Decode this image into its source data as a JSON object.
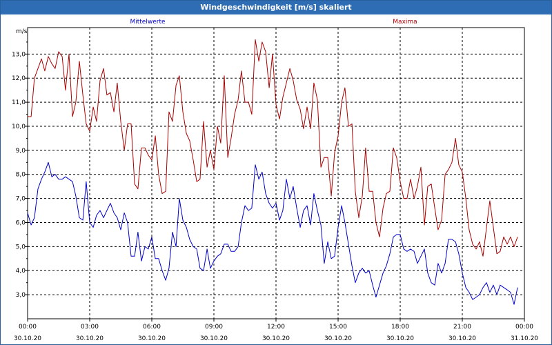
{
  "window": {
    "title": "Windgeschwindigkeit [m/s] skaliert"
  },
  "colors": {
    "titlebar": "#2e6db4",
    "mean": "#0000cc",
    "max": "#aa0000",
    "grid": "#000000"
  },
  "chart_data": {
    "type": "line",
    "title": "Windgeschwindigkeit [m/s] skaliert",
    "ylabel": "m/s",
    "ylim": [
      2.0,
      14.1
    ],
    "yticks": [
      "3,0",
      "4,0",
      "5,0",
      "6,0",
      "7,0",
      "8,0",
      "9,0",
      "10,0",
      "11,0",
      "12,0",
      "13,0"
    ],
    "ytick_values": [
      3,
      4,
      5,
      6,
      7,
      8,
      9,
      10,
      11,
      12,
      13
    ],
    "xlim_hours": [
      0,
      24
    ],
    "xticks": [
      {
        "time": "00:00",
        "date": "30.10.20",
        "h": 0
      },
      {
        "time": "03:00",
        "date": "30.10.20",
        "h": 3
      },
      {
        "time": "06:00",
        "date": "30.10.20",
        "h": 6
      },
      {
        "time": "09:00",
        "date": "30.10.20",
        "h": 9
      },
      {
        "time": "12:00",
        "date": "30.10.20",
        "h": 12
      },
      {
        "time": "15:00",
        "date": "30.10.20",
        "h": 15
      },
      {
        "time": "18:00",
        "date": "30.10.20",
        "h": 18
      },
      {
        "time": "21:00",
        "date": "30.10.20",
        "h": 21
      },
      {
        "time": "00:00",
        "date": "31.10.20",
        "h": 24
      }
    ],
    "grid": true,
    "series": [
      {
        "name": "Mittelwerte",
        "color": "#0000cc",
        "points": [
          [
            0.0,
            6.4
          ],
          [
            0.17,
            5.9
          ],
          [
            0.33,
            6.2
          ],
          [
            0.5,
            7.4
          ],
          [
            0.67,
            7.8
          ],
          [
            0.83,
            8.1
          ],
          [
            1.0,
            8.5
          ],
          [
            1.17,
            7.9
          ],
          [
            1.33,
            8.0
          ],
          [
            1.5,
            7.8
          ],
          [
            1.67,
            7.8
          ],
          [
            1.83,
            7.9
          ],
          [
            2.0,
            7.8
          ],
          [
            2.17,
            7.7
          ],
          [
            2.33,
            7.1
          ],
          [
            2.5,
            6.2
          ],
          [
            2.67,
            6.1
          ],
          [
            2.83,
            7.7
          ],
          [
            3.0,
            6.0
          ],
          [
            3.17,
            5.8
          ],
          [
            3.33,
            6.3
          ],
          [
            3.5,
            6.5
          ],
          [
            3.67,
            6.2
          ],
          [
            3.83,
            6.5
          ],
          [
            4.0,
            6.8
          ],
          [
            4.17,
            6.4
          ],
          [
            4.33,
            6.2
          ],
          [
            4.5,
            5.7
          ],
          [
            4.67,
            6.4
          ],
          [
            4.83,
            6.0
          ],
          [
            5.0,
            4.6
          ],
          [
            5.17,
            4.6
          ],
          [
            5.33,
            5.6
          ],
          [
            5.5,
            4.4
          ],
          [
            5.67,
            5.0
          ],
          [
            5.83,
            4.9
          ],
          [
            6.0,
            5.4
          ],
          [
            6.17,
            4.5
          ],
          [
            6.33,
            4.5
          ],
          [
            6.5,
            4.0
          ],
          [
            6.67,
            3.6
          ],
          [
            6.83,
            4.1
          ],
          [
            7.0,
            5.6
          ],
          [
            7.17,
            5.0
          ],
          [
            7.33,
            7.0
          ],
          [
            7.5,
            6.1
          ],
          [
            7.67,
            5.8
          ],
          [
            7.83,
            5.3
          ],
          [
            8.0,
            5.0
          ],
          [
            8.17,
            4.9
          ],
          [
            8.33,
            4.1
          ],
          [
            8.5,
            4.0
          ],
          [
            8.67,
            4.9
          ],
          [
            8.83,
            4.1
          ],
          [
            9.0,
            4.4
          ],
          [
            9.17,
            4.6
          ],
          [
            9.33,
            4.7
          ],
          [
            9.5,
            5.1
          ],
          [
            9.67,
            5.1
          ],
          [
            9.83,
            4.8
          ],
          [
            10.0,
            4.8
          ],
          [
            10.17,
            5.0
          ],
          [
            10.33,
            6.0
          ],
          [
            10.5,
            6.7
          ],
          [
            10.67,
            6.5
          ],
          [
            10.83,
            6.6
          ],
          [
            11.0,
            8.4
          ],
          [
            11.17,
            7.8
          ],
          [
            11.33,
            8.1
          ],
          [
            11.5,
            7.2
          ],
          [
            11.67,
            6.8
          ],
          [
            11.83,
            6.6
          ],
          [
            12.0,
            6.8
          ],
          [
            12.17,
            6.1
          ],
          [
            12.33,
            6.5
          ],
          [
            12.5,
            7.8
          ],
          [
            12.67,
            7.0
          ],
          [
            12.83,
            7.5
          ],
          [
            13.0,
            6.6
          ],
          [
            13.17,
            5.8
          ],
          [
            13.33,
            6.5
          ],
          [
            13.5,
            6.7
          ],
          [
            13.67,
            5.9
          ],
          [
            13.83,
            7.2
          ],
          [
            14.0,
            6.5
          ],
          [
            14.17,
            5.9
          ],
          [
            14.33,
            4.3
          ],
          [
            14.5,
            5.2
          ],
          [
            14.67,
            4.5
          ],
          [
            14.83,
            4.6
          ],
          [
            15.0,
            5.8
          ],
          [
            15.17,
            6.7
          ],
          [
            15.33,
            6.0
          ],
          [
            15.5,
            5.1
          ],
          [
            15.67,
            4.2
          ],
          [
            15.83,
            3.5
          ],
          [
            16.0,
            3.9
          ],
          [
            16.17,
            4.1
          ],
          [
            16.33,
            3.9
          ],
          [
            16.5,
            4.0
          ],
          [
            16.67,
            3.4
          ],
          [
            16.83,
            2.9
          ],
          [
            17.0,
            3.4
          ],
          [
            17.17,
            3.9
          ],
          [
            17.33,
            4.2
          ],
          [
            17.5,
            4.7
          ],
          [
            17.67,
            5.4
          ],
          [
            17.83,
            5.5
          ],
          [
            18.0,
            5.5
          ],
          [
            18.17,
            4.9
          ],
          [
            18.33,
            4.8
          ],
          [
            18.5,
            4.9
          ],
          [
            18.67,
            4.8
          ],
          [
            18.83,
            4.3
          ],
          [
            19.0,
            4.6
          ],
          [
            19.17,
            4.9
          ],
          [
            19.33,
            3.9
          ],
          [
            19.5,
            3.5
          ],
          [
            19.67,
            3.4
          ],
          [
            19.83,
            4.3
          ],
          [
            20.0,
            3.9
          ],
          [
            20.17,
            4.3
          ],
          [
            20.33,
            5.3
          ],
          [
            20.5,
            5.3
          ],
          [
            20.67,
            5.2
          ],
          [
            20.83,
            4.7
          ],
          [
            21.0,
            3.9
          ],
          [
            21.17,
            3.3
          ],
          [
            21.33,
            3.1
          ],
          [
            21.5,
            2.8
          ],
          [
            21.67,
            2.9
          ],
          [
            21.83,
            3.0
          ],
          [
            22.0,
            3.3
          ],
          [
            22.17,
            3.5
          ],
          [
            22.33,
            3.1
          ],
          [
            22.5,
            3.4
          ],
          [
            22.67,
            3.0
          ],
          [
            22.83,
            3.4
          ],
          [
            23.0,
            3.3
          ],
          [
            23.17,
            3.2
          ],
          [
            23.33,
            3.1
          ],
          [
            23.5,
            2.6
          ],
          [
            23.67,
            3.3
          ]
        ]
      },
      {
        "name": "Maxima",
        "color": "#aa0000",
        "points": [
          [
            0.0,
            10.4
          ],
          [
            0.17,
            10.4
          ],
          [
            0.33,
            12.0
          ],
          [
            0.5,
            12.4
          ],
          [
            0.67,
            12.8
          ],
          [
            0.83,
            12.3
          ],
          [
            1.0,
            12.9
          ],
          [
            1.17,
            12.6
          ],
          [
            1.33,
            12.4
          ],
          [
            1.5,
            13.1
          ],
          [
            1.67,
            12.9
          ],
          [
            1.83,
            11.5
          ],
          [
            2.0,
            13.0
          ],
          [
            2.17,
            10.4
          ],
          [
            2.33,
            11.0
          ],
          [
            2.5,
            12.7
          ],
          [
            2.67,
            11.3
          ],
          [
            2.83,
            10.1
          ],
          [
            3.0,
            9.8
          ],
          [
            3.17,
            10.8
          ],
          [
            3.33,
            10.2
          ],
          [
            3.5,
            11.9
          ],
          [
            3.67,
            12.4
          ],
          [
            3.83,
            11.3
          ],
          [
            4.0,
            11.4
          ],
          [
            4.17,
            10.6
          ],
          [
            4.33,
            11.8
          ],
          [
            4.5,
            10.2
          ],
          [
            4.67,
            9.0
          ],
          [
            4.83,
            10.1
          ],
          [
            5.0,
            10.1
          ],
          [
            5.17,
            7.6
          ],
          [
            5.33,
            7.4
          ],
          [
            5.5,
            9.1
          ],
          [
            5.67,
            9.1
          ],
          [
            5.83,
            8.8
          ],
          [
            6.0,
            8.6
          ],
          [
            6.17,
            9.6
          ],
          [
            6.33,
            8.0
          ],
          [
            6.5,
            7.2
          ],
          [
            6.67,
            7.3
          ],
          [
            6.83,
            10.6
          ],
          [
            7.0,
            10.2
          ],
          [
            7.17,
            11.7
          ],
          [
            7.33,
            12.1
          ],
          [
            7.5,
            10.6
          ],
          [
            7.67,
            9.7
          ],
          [
            7.83,
            9.4
          ],
          [
            8.0,
            8.6
          ],
          [
            8.17,
            7.7
          ],
          [
            8.33,
            7.8
          ],
          [
            8.5,
            10.2
          ],
          [
            8.67,
            8.3
          ],
          [
            8.83,
            9.0
          ],
          [
            9.0,
            8.2
          ],
          [
            9.17,
            10.0
          ],
          [
            9.33,
            9.3
          ],
          [
            9.5,
            12.1
          ],
          [
            9.67,
            8.7
          ],
          [
            9.83,
            9.5
          ],
          [
            10.0,
            10.5
          ],
          [
            10.17,
            11.1
          ],
          [
            10.33,
            12.3
          ],
          [
            10.5,
            11.0
          ],
          [
            10.67,
            11.0
          ],
          [
            10.83,
            10.5
          ],
          [
            11.0,
            13.6
          ],
          [
            11.17,
            12.7
          ],
          [
            11.33,
            13.5
          ],
          [
            11.5,
            13.1
          ],
          [
            11.67,
            11.6
          ],
          [
            11.83,
            13.0
          ],
          [
            12.0,
            10.9
          ],
          [
            12.17,
            10.3
          ],
          [
            12.33,
            11.2
          ],
          [
            12.5,
            11.8
          ],
          [
            12.67,
            12.4
          ],
          [
            12.83,
            11.9
          ],
          [
            13.0,
            11.1
          ],
          [
            13.17,
            10.7
          ],
          [
            13.33,
            9.9
          ],
          [
            13.5,
            10.8
          ],
          [
            13.67,
            9.9
          ],
          [
            13.83,
            11.8
          ],
          [
            14.0,
            11.1
          ],
          [
            14.17,
            8.3
          ],
          [
            14.33,
            8.7
          ],
          [
            14.5,
            8.7
          ],
          [
            14.67,
            7.1
          ],
          [
            14.83,
            8.9
          ],
          [
            15.0,
            9.6
          ],
          [
            15.17,
            11.0
          ],
          [
            15.33,
            11.6
          ],
          [
            15.5,
            10.0
          ],
          [
            15.67,
            10.1
          ],
          [
            15.83,
            7.3
          ],
          [
            16.0,
            6.2
          ],
          [
            16.17,
            7.1
          ],
          [
            16.33,
            9.1
          ],
          [
            16.5,
            7.3
          ],
          [
            16.67,
            7.3
          ],
          [
            16.83,
            6.0
          ],
          [
            17.0,
            5.4
          ],
          [
            17.17,
            6.6
          ],
          [
            17.33,
            7.2
          ],
          [
            17.5,
            7.3
          ],
          [
            17.67,
            9.1
          ],
          [
            17.83,
            8.7
          ],
          [
            18.0,
            7.7
          ],
          [
            18.17,
            7.0
          ],
          [
            18.33,
            7.0
          ],
          [
            18.5,
            7.8
          ],
          [
            18.67,
            7.0
          ],
          [
            18.83,
            7.5
          ],
          [
            19.0,
            8.3
          ],
          [
            19.17,
            5.9
          ],
          [
            19.33,
            7.5
          ],
          [
            19.5,
            7.6
          ],
          [
            19.67,
            6.6
          ],
          [
            19.83,
            5.7
          ],
          [
            20.0,
            6.1
          ],
          [
            20.17,
            8.0
          ],
          [
            20.33,
            8.2
          ],
          [
            20.5,
            8.5
          ],
          [
            20.67,
            9.5
          ],
          [
            20.83,
            8.4
          ],
          [
            21.0,
            8.1
          ],
          [
            21.17,
            7.0
          ],
          [
            21.33,
            5.7
          ],
          [
            21.5,
            5.1
          ],
          [
            21.67,
            4.9
          ],
          [
            21.83,
            5.2
          ],
          [
            22.0,
            4.6
          ],
          [
            22.17,
            5.8
          ],
          [
            22.33,
            6.9
          ],
          [
            22.5,
            5.8
          ],
          [
            22.67,
            4.7
          ],
          [
            22.83,
            4.8
          ],
          [
            23.0,
            5.4
          ],
          [
            23.17,
            5.1
          ],
          [
            23.33,
            5.4
          ],
          [
            23.5,
            5.0
          ],
          [
            23.67,
            5.4
          ]
        ]
      }
    ]
  }
}
